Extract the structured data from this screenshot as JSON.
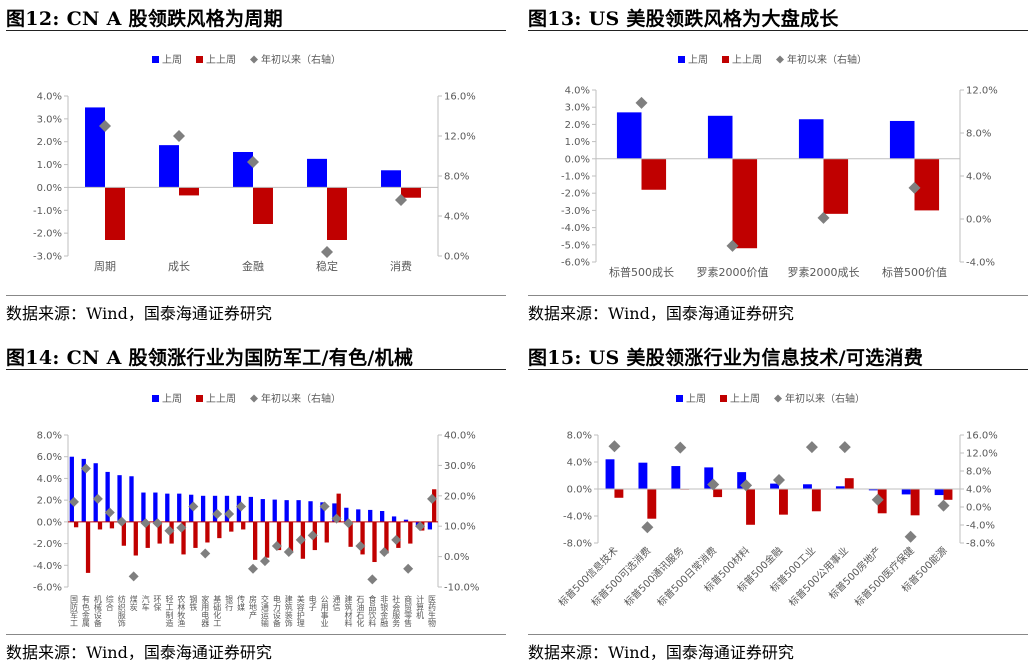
{
  "colors": {
    "last_week": "#0000FF",
    "prev_week": "#C00000",
    "ytd": "#7F7F7F",
    "axis": "#BFBFBF",
    "text": "#595959"
  },
  "legend": {
    "last_week": "上周",
    "prev_week": "上上周",
    "ytd": "年初以来（右轴）"
  },
  "panels": [
    {
      "title": "图12:  CN A 股领跌风格为周期",
      "source": "数据来源：Wind，国泰海通证券研究",
      "chart_data": {
        "type": "bar",
        "categories": [
          "周期",
          "成长",
          "金融",
          "稳定",
          "消费"
        ],
        "series": [
          {
            "name": "上周",
            "values": [
              3.5,
              1.85,
              1.55,
              1.25,
              0.75
            ]
          },
          {
            "name": "上上周",
            "values": [
              -2.3,
              -0.35,
              -1.6,
              -2.3,
              -0.45
            ]
          },
          {
            "name": "年初以来（右轴）",
            "axis": "right",
            "values": [
              13.0,
              12.0,
              9.4,
              0.4,
              5.6
            ]
          }
        ],
        "ylim": [
          -3,
          4
        ],
        "y_ticks": [
          -3,
          -2,
          -1,
          0,
          1,
          2,
          3,
          4
        ],
        "y_tick_labels": [
          "-3.0%",
          "-2.0%",
          "-1.0%",
          "0.0%",
          "1.0%",
          "2.0%",
          "3.0%",
          "4.0%"
        ],
        "y2lim": [
          0,
          16
        ],
        "y2_ticks": [
          0,
          4,
          8,
          12,
          16
        ],
        "y2_tick_labels": [
          "0.0%",
          "4.0%",
          "8.0%",
          "12.0%",
          "16.0%"
        ],
        "xlabel_rotation": "none"
      }
    },
    {
      "title": "图13:  US 美股领跌风格为大盘成长",
      "source": "数据来源：Wind，国泰海通证券研究",
      "chart_data": {
        "type": "bar",
        "categories": [
          "标普500成长",
          "罗素2000价值",
          "罗素2000成长",
          "标普500价值"
        ],
        "series": [
          {
            "name": "上周",
            "values": [
              2.7,
              2.5,
              2.3,
              2.2
            ]
          },
          {
            "name": "上上周",
            "values": [
              -1.8,
              -5.2,
              -3.2,
              -3.0
            ]
          },
          {
            "name": "年初以来（右轴）",
            "axis": "right",
            "values": [
              10.8,
              -2.5,
              0.1,
              2.9
            ]
          }
        ],
        "ylim": [
          -6,
          4
        ],
        "y_ticks": [
          -6,
          -5,
          -4,
          -3,
          -2,
          -1,
          0,
          1,
          2,
          3,
          4
        ],
        "y_tick_labels": [
          "-6.0%",
          "-5.0%",
          "-4.0%",
          "-3.0%",
          "-2.0%",
          "-1.0%",
          "0.0%",
          "1.0%",
          "2.0%",
          "3.0%",
          "4.0%"
        ],
        "y2lim": [
          -4,
          12
        ],
        "y2_ticks": [
          -4,
          0,
          4,
          8,
          12
        ],
        "y2_tick_labels": [
          "-4.0%",
          "0.0%",
          "4.0%",
          "8.0%",
          "12.0%"
        ],
        "xlabel_rotation": "none"
      }
    },
    {
      "title": "图14:  CN A 股领涨行业为国防军工/有色/机械",
      "source": "数据来源：Wind，国泰海通证券研究",
      "chart_data": {
        "type": "bar",
        "categories": [
          "国防军工",
          "有色金属",
          "机械设备",
          "综合",
          "纺织服饰",
          "煤炭",
          "汽车",
          "环保",
          "轻工制造",
          "农林牧渔",
          "钢铁",
          "家用电器",
          "基础化工",
          "银行",
          "传媒",
          "房地产",
          "交通运输",
          "电力设备",
          "建筑装饰",
          "美容护理",
          "电子",
          "公用事业",
          "通信",
          "建筑材料",
          "石油石化",
          "食品饮料",
          "非银金融",
          "社会服务",
          "商贸零售",
          "计算机",
          "医药生物"
        ],
        "series": [
          {
            "name": "上周",
            "values": [
              6.0,
              5.8,
              5.4,
              4.6,
              4.3,
              4.2,
              2.7,
              2.7,
              2.6,
              2.6,
              2.5,
              2.4,
              2.4,
              2.4,
              2.4,
              2.3,
              2.1,
              2.05,
              2.0,
              2.0,
              1.9,
              1.8,
              1.7,
              1.3,
              1.15,
              1.1,
              1.0,
              0.5,
              0.2,
              -0.4,
              -0.7
            ]
          },
          {
            "name": "上上周",
            "values": [
              -0.5,
              -4.7,
              -0.7,
              -0.6,
              -2.2,
              -3.1,
              -2.4,
              -2.0,
              -2.0,
              -3.0,
              -2.4,
              -1.9,
              -1.5,
              -0.9,
              -0.7,
              -3.5,
              -3.3,
              -2.6,
              -2.7,
              -3.4,
              -2.6,
              -1.9,
              2.6,
              -2.3,
              -3.0,
              -3.7,
              -2.9,
              -2.4,
              -2.0,
              -0.8,
              3.0
            ]
          },
          {
            "name": "年初以来（右轴）",
            "axis": "right",
            "values": [
              18.0,
              29.0,
              19.0,
              14.5,
              11.5,
              -6.5,
              11.0,
              11.0,
              8.5,
              9.5,
              16.5,
              1.0,
              14.0,
              14.0,
              16.5,
              -4.0,
              -1.5,
              3.5,
              1.5,
              5.5,
              7.0,
              16.5,
              12.5,
              11.0,
              3.5,
              -7.5,
              1.5,
              5.5,
              -4.0,
              10.0,
              19.0
            ]
          }
        ],
        "ylim": [
          -6,
          8
        ],
        "y_ticks": [
          -6,
          -4,
          -2,
          0,
          2,
          4,
          6,
          8
        ],
        "y_tick_labels": [
          "-6.0%",
          "-4.0%",
          "-2.0%",
          "0.0%",
          "2.0%",
          "4.0%",
          "6.0%",
          "8.0%"
        ],
        "y2lim": [
          -10,
          40
        ],
        "y2_ticks": [
          -10,
          0,
          10,
          20,
          30,
          40
        ],
        "y2_tick_labels": [
          "-10.0%",
          "0.0%",
          "10.0%",
          "20.0%",
          "30.0%",
          "40.0%"
        ],
        "xlabel_rotation": "vertical"
      }
    },
    {
      "title": "图15:  US  美股领涨行业为信息技术/可选消费",
      "source": "数据来源：Wind，国泰海通证券研究",
      "chart_data": {
        "type": "bar",
        "categories": [
          "标普500信息技术",
          "标普500可选消费",
          "标普500通讯服务",
          "标普500日常消费",
          "标普500材料",
          "标普500金融",
          "标普500工业",
          "标普500公用事业",
          "标普500房地产",
          "标普500医疗保健",
          "标普500能源"
        ],
        "series": [
          {
            "name": "上周",
            "values": [
              4.4,
              3.9,
              3.4,
              3.2,
              2.5,
              0.8,
              0.7,
              0.4,
              -0.2,
              -0.8,
              -0.9
            ]
          },
          {
            "name": "上上周",
            "values": [
              -1.3,
              -4.4,
              -0.1,
              -1.2,
              -5.3,
              -3.8,
              -3.3,
              1.6,
              -3.6,
              -3.9,
              -1.6
            ]
          },
          {
            "name": "年初以来（右轴）",
            "axis": "right",
            "values": [
              13.5,
              -4.5,
              13.2,
              5.0,
              4.8,
              6.0,
              13.3,
              13.3,
              1.6,
              -6.6,
              0.3
            ]
          }
        ],
        "ylim": [
          -8,
          8
        ],
        "y_ticks": [
          -8,
          -4,
          0,
          4,
          8
        ],
        "y_tick_labels": [
          "-8.0%",
          "-4.0%",
          "0.0%",
          "4.0%",
          "8.0%"
        ],
        "y2lim": [
          -8,
          16
        ],
        "y2_ticks": [
          -8,
          -4,
          0,
          4,
          8,
          12,
          16
        ],
        "y2_tick_labels": [
          "-8.0%",
          "-4.0%",
          "0.0%",
          "4.0%",
          "8.0%",
          "12.0%",
          "16.0%"
        ],
        "xlabel_rotation": "diagonal"
      }
    }
  ]
}
